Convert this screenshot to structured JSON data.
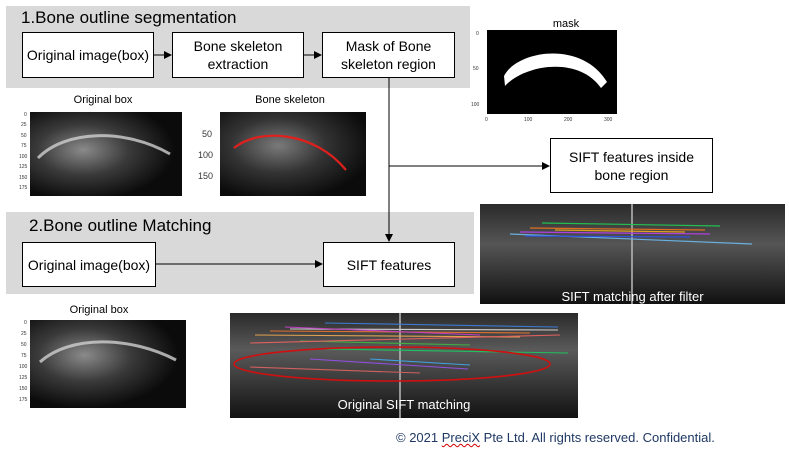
{
  "section1": {
    "title": "1.Bone outline segmentation",
    "box_original": "Original image(box)",
    "box_skeleton": "Bone skeleton extraction",
    "box_mask": "Mask of Bone skeleton region"
  },
  "mask_plot": {
    "title": "mask",
    "y_ticks": [
      "0",
      "50",
      "100"
    ],
    "x_ticks": [
      "0",
      "100",
      "200",
      "300"
    ]
  },
  "original_box_top": {
    "title": "Original box",
    "y_ticks": [
      "0",
      "25",
      "50",
      "75",
      "100",
      "125",
      "150",
      "175"
    ]
  },
  "bone_skeleton_plot": {
    "title": "Bone skeleton",
    "y_ticks": [
      "50",
      "100",
      "150"
    ]
  },
  "sift_inside_box": "SIFT features inside bone region",
  "section2": {
    "title": "2.Bone outline Matching",
    "box_original": "Original image(box)",
    "box_sift": "SIFT features"
  },
  "sift_filter_image": {
    "caption": "SIFT matching after filter"
  },
  "original_box_bottom": {
    "title": "Original box",
    "y_ticks": [
      "0",
      "25",
      "50",
      "75",
      "100",
      "125",
      "150",
      "175"
    ]
  },
  "sift_original_image": {
    "caption": "Original SIFT matching"
  },
  "footer": {
    "prefix": "© 2021 ",
    "brand": "PreciX",
    "suffix": " Pte Ltd. All rights reserved. Confidential."
  },
  "colors": {
    "panel": "#d9d9d9",
    "skeleton_line": "#e0201c",
    "ellipse": "#d01010",
    "footer_text": "#1f3864"
  }
}
